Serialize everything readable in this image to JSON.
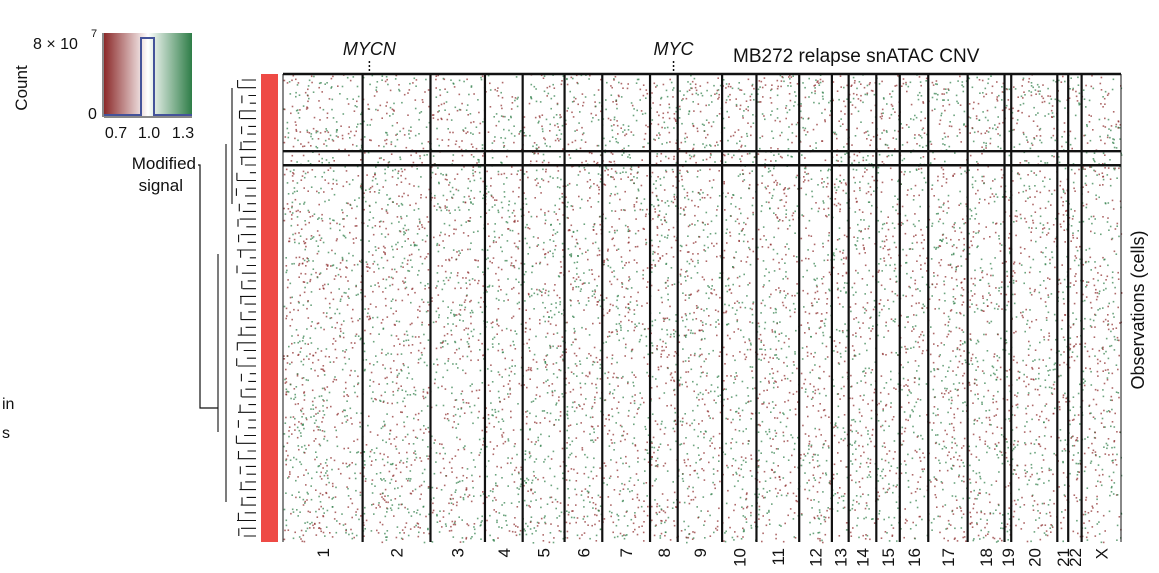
{
  "chart_data": {
    "type": "heatmap",
    "title": "MB272 relapse snATAC CNV",
    "ylabel": "Observations (cells)",
    "annotations": [
      {
        "label": "MYCN",
        "chromosome": "2"
      },
      {
        "label": "MYC",
        "chromosome": "8"
      }
    ],
    "chromosomes": [
      "1",
      "2",
      "3",
      "4",
      "5",
      "6",
      "7",
      "8",
      "9",
      "10",
      "11",
      "12",
      "13",
      "14",
      "15",
      "16",
      "17",
      "18",
      "19",
      "20",
      "21",
      "22",
      "X"
    ],
    "chromosome_boundary_relative": [
      0,
      0.095,
      0.176,
      0.241,
      0.286,
      0.336,
      0.381,
      0.438,
      0.471,
      0.524,
      0.565,
      0.616,
      0.655,
      0.675,
      0.708,
      0.736,
      0.77,
      0.817,
      0.861,
      0.869,
      0.924,
      0.937,
      0.953,
      1.0
    ],
    "clusters": [
      {
        "name": "",
        "relative_height": 0.165
      },
      {
        "name": "",
        "relative_height": 0.03
      },
      {
        "name": "",
        "relative_height": 0.805
      }
    ],
    "color_scale": {
      "label_line1": "Modified",
      "label_line2": "signal",
      "ylabel": "Count",
      "range": [
        0.7,
        1.3
      ],
      "ticks": [
        "0.7",
        "1.0",
        "1.3"
      ],
      "count_max_base": "8 × 10",
      "count_max_exp": "7",
      "count_min": "0",
      "low_color": "#8b2a2a",
      "mid_color": "#ffffff",
      "high_color": "#2e7d47"
    },
    "sample_bar_color": "#ee4a45",
    "clipped_left_text": [
      "in",
      "s"
    ]
  }
}
